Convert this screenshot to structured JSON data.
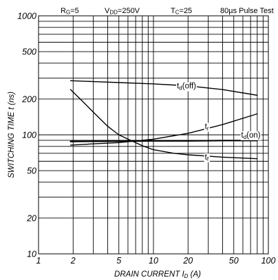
{
  "chart_data": {
    "type": "line",
    "conditions": [
      {
        "main": "R",
        "sub": "G",
        "rest": "=5"
      },
      {
        "main": "V",
        "sub": "DD",
        "rest": "=250V"
      },
      {
        "main": "T",
        "sub": "C",
        "rest": "=25"
      },
      {
        "main": "80µs Pulse Test",
        "sub": "",
        "rest": ""
      }
    ],
    "xlabel": {
      "main": "DRAIN CURRENT  ",
      "sym": "I",
      "sub": "D",
      "rest": " (A)"
    },
    "ylabel": "SWITCHING TIME  t (ns)",
    "xscale": "log",
    "yscale": "log",
    "xlim": [
      1,
      100
    ],
    "ylim": [
      10,
      1000
    ],
    "x_ticks": [
      1,
      2,
      5,
      10,
      20,
      50,
      100
    ],
    "x_tick_labels": [
      "1",
      "2",
      "5",
      "10",
      "20",
      "50",
      "100"
    ],
    "y_ticks": [
      10,
      20,
      50,
      100,
      200,
      500,
      1000
    ],
    "y_tick_labels": [
      "10",
      "20",
      "50",
      "100",
      "200",
      "500",
      "1000"
    ],
    "grid": true,
    "series": [
      {
        "name": "td(off)",
        "label_main": "t",
        "label_sub": "d",
        "label_rest": "(off)",
        "label_at": [
          16,
          245
        ],
        "points": [
          [
            1.9,
            285
          ],
          [
            3,
            280
          ],
          [
            5,
            275
          ],
          [
            10,
            268
          ],
          [
            20,
            258
          ],
          [
            40,
            240
          ],
          [
            80,
            215
          ]
        ]
      },
      {
        "name": "tr",
        "label_main": "t",
        "label_sub": "r",
        "label_rest": "",
        "label_at": [
          28,
          112
        ],
        "points": [
          [
            1.9,
            82
          ],
          [
            3,
            84
          ],
          [
            5,
            86
          ],
          [
            10,
            92
          ],
          [
            20,
            103
          ],
          [
            40,
            122
          ],
          [
            80,
            150
          ]
        ]
      },
      {
        "name": "td(on)",
        "label_main": "t",
        "label_sub": "d",
        "label_rest": "(on)",
        "label_at": [
          58,
          95
        ],
        "points": [
          [
            1.9,
            88
          ],
          [
            5,
            88.5
          ],
          [
            10,
            89
          ],
          [
            20,
            89
          ],
          [
            40,
            89.5
          ],
          [
            80,
            89.5
          ]
        ]
      },
      {
        "name": "tf",
        "label_main": "t",
        "label_sub": "f",
        "label_rest": "",
        "label_at": [
          28,
          62
        ],
        "points": [
          [
            1.9,
            240
          ],
          [
            2.5,
            185
          ],
          [
            3,
            155
          ],
          [
            4,
            118
          ],
          [
            5,
            100
          ],
          [
            6,
            92
          ],
          [
            8,
            81
          ],
          [
            10,
            75
          ],
          [
            15,
            70
          ],
          [
            20,
            68
          ],
          [
            40,
            65
          ],
          [
            80,
            63
          ]
        ]
      }
    ]
  }
}
